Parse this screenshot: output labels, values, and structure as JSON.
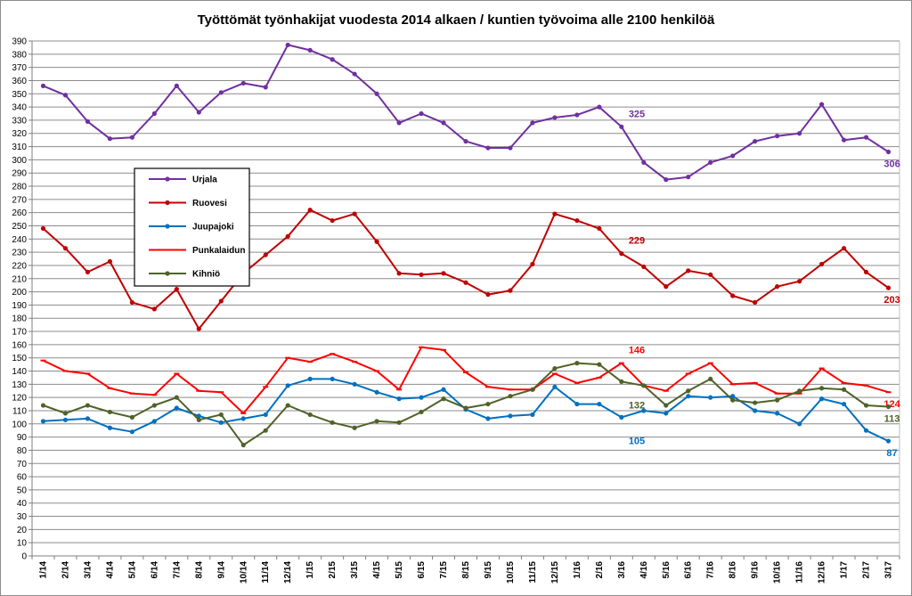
{
  "chart_data": {
    "type": "line",
    "title": "Työttömät työnhakijat vuodesta 2014 alkaen / kuntien työvoima alle 2100 henkilöä",
    "xlabel": "",
    "ylabel": "",
    "ylim": [
      0,
      390
    ],
    "ytick_step": 10,
    "grid": true,
    "legend_position": "left-middle",
    "categories": [
      "1/14",
      "2/14",
      "3/14",
      "4/14",
      "5/14",
      "6/14",
      "7/14",
      "8/14",
      "9/14",
      "10/14",
      "11/14",
      "12/14",
      "1/15",
      "2/15",
      "3/15",
      "4/15",
      "5/15",
      "6/15",
      "7/15",
      "8/15",
      "9/15",
      "10/15",
      "11/15",
      "12/15",
      "1/16",
      "2/16",
      "3/16",
      "4/16",
      "5/16",
      "6/16",
      "7/16",
      "8/16",
      "9/16",
      "10/16",
      "11/16",
      "12/16",
      "1/17",
      "2/17",
      "3/17"
    ],
    "series": [
      {
        "name": "Urjala",
        "color": "#7030a0",
        "marker": "circle",
        "values": [
          356,
          349,
          329,
          316,
          317,
          335,
          356,
          336,
          351,
          358,
          355,
          387,
          383,
          376,
          365,
          350,
          328,
          335,
          328,
          314,
          309,
          309,
          328,
          332,
          334,
          340,
          325,
          298,
          285,
          287,
          298,
          303,
          314,
          318,
          320,
          342,
          315,
          317,
          306
        ],
        "labels": [
          {
            "index": 26,
            "text": "325"
          },
          {
            "index": 38,
            "text": "306"
          }
        ]
      },
      {
        "name": "Ruovesi",
        "color": "#c00000",
        "marker": "circle",
        "values": [
          248,
          233,
          215,
          223,
          192,
          187,
          202,
          172,
          193,
          214,
          228,
          242,
          262,
          254,
          259,
          238,
          214,
          213,
          214,
          207,
          198,
          201,
          221,
          259,
          254,
          248,
          229,
          219,
          204,
          216,
          213,
          197,
          192,
          204,
          208,
          221,
          233,
          215,
          203
        ],
        "labels": [
          {
            "index": 26,
            "text": "229"
          },
          {
            "index": 38,
            "text": "203"
          }
        ]
      },
      {
        "name": "Juupajoki",
        "color": "#0070c0",
        "marker": "circle",
        "values": [
          102,
          103,
          104,
          97,
          94,
          102,
          112,
          106,
          101,
          104,
          107,
          129,
          134,
          134,
          130,
          124,
          119,
          120,
          126,
          111,
          104,
          106,
          107,
          128,
          115,
          115,
          105,
          110,
          108,
          121,
          120,
          121,
          110,
          108,
          100,
          119,
          115,
          95,
          87
        ],
        "labels": [
          {
            "index": 26,
            "text": "105"
          },
          {
            "index": 38,
            "text": "87"
          }
        ]
      },
      {
        "name": "Punkalaidun",
        "color": "#ff0000",
        "marker": "dash",
        "values": [
          148,
          140,
          138,
          127,
          123,
          122,
          138,
          125,
          124,
          108,
          128,
          150,
          147,
          153,
          147,
          140,
          126,
          158,
          156,
          139,
          128,
          126,
          126,
          138,
          131,
          135,
          146,
          129,
          125,
          138,
          146,
          130,
          131,
          123,
          123,
          142,
          131,
          129,
          124
        ],
        "labels": [
          {
            "index": 26,
            "text": "146"
          },
          {
            "index": 38,
            "text": "124"
          }
        ]
      },
      {
        "name": "Kihniö",
        "color": "#4f6228",
        "marker": "circle",
        "values": [
          114,
          108,
          114,
          109,
          105,
          114,
          120,
          103,
          107,
          84,
          95,
          114,
          107,
          101,
          97,
          102,
          101,
          109,
          119,
          112,
          115,
          121,
          126,
          142,
          146,
          145,
          132,
          129,
          114,
          125,
          134,
          118,
          116,
          118,
          125,
          127,
          126,
          114,
          113
        ],
        "labels": [
          {
            "index": 26,
            "text": "132"
          },
          {
            "index": 38,
            "text": "113"
          }
        ]
      }
    ]
  }
}
